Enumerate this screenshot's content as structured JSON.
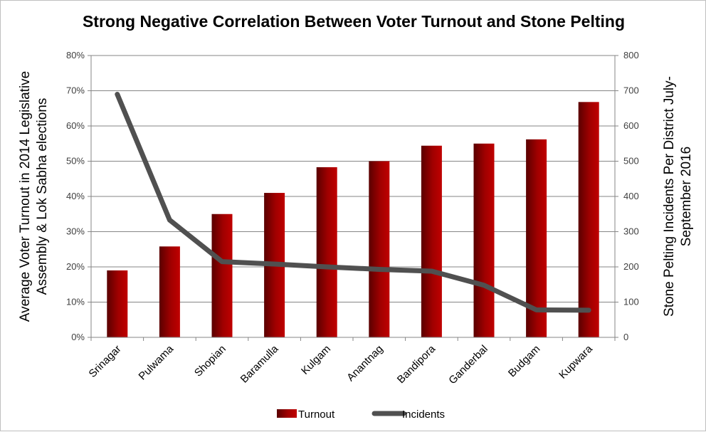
{
  "chart_data": {
    "type": "bar",
    "title": "Strong Negative Correlation Between Voter Turnout and  Stone Pelting",
    "categories": [
      "Srinagar",
      "Pulwama",
      "Shopian",
      "Baramulla",
      "Kulgam",
      "Anantnag",
      "Bandipora",
      "Ganderbal",
      "Budgam",
      "Kupwara"
    ],
    "series": [
      {
        "name": "Turnout",
        "type": "bar",
        "axis": "left",
        "unit": "percent",
        "color": "#8b0000",
        "values": [
          19.0,
          25.8,
          35.0,
          41.0,
          48.3,
          50.0,
          54.4,
          55.0,
          56.2,
          66.8
        ]
      },
      {
        "name": "Incidents",
        "type": "line",
        "axis": "right",
        "color": "#505050",
        "values": [
          690,
          333,
          215,
          208,
          200,
          193,
          188,
          148,
          78,
          77
        ]
      }
    ],
    "y_left": {
      "label_lines": [
        "Average Voter Turnout in 2014 Legislative",
        "Assembly & Lok Sabha elections"
      ],
      "range": [
        0,
        80
      ],
      "ticks": [
        "0%",
        "10%",
        "20%",
        "30%",
        "40%",
        "50%",
        "60%",
        "70%",
        "80%"
      ]
    },
    "y_right": {
      "label_lines": [
        "Stone Pelting Incidents Per District July-",
        "September 2016"
      ],
      "range": [
        0,
        800
      ],
      "ticks": [
        "0",
        "100",
        "200",
        "300",
        "400",
        "500",
        "600",
        "700",
        "800"
      ]
    },
    "grid": true,
    "legend_position": "bottom"
  }
}
